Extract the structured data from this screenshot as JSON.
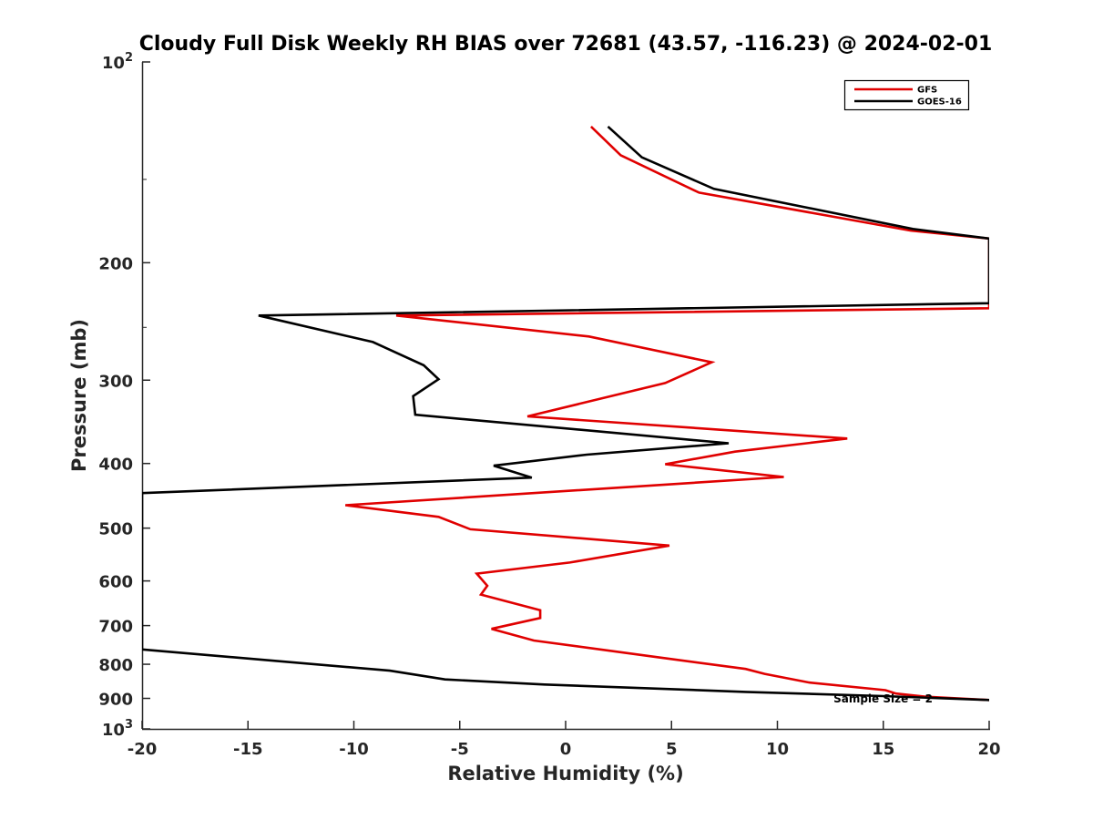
{
  "chart_data": {
    "type": "line",
    "title": "Cloudy Full Disk Weekly RH BIAS over 72681 (43.57, -116.23) @ 2024-02-01",
    "xlabel": "Relative Humidity (%)",
    "ylabel": "Pressure (mb)",
    "xlim": [
      -20,
      20
    ],
    "ylim": [
      1000,
      100
    ],
    "yscale": "log",
    "y_reversed": true,
    "x_ticks": [
      "-20",
      "-15",
      "-10",
      "-5",
      "0",
      "5",
      "10",
      "15",
      "20"
    ],
    "y_ticks": [
      {
        "value": 100,
        "base": "10",
        "exp": "2"
      },
      {
        "value": 200,
        "label": "200"
      },
      {
        "value": 300,
        "label": "300"
      },
      {
        "value": 400,
        "label": "400"
      },
      {
        "value": 500,
        "label": "500"
      },
      {
        "value": 600,
        "label": "600"
      },
      {
        "value": 700,
        "label": "700"
      },
      {
        "value": 800,
        "label": "800"
      },
      {
        "value": 900,
        "label": "900"
      },
      {
        "value": 1000,
        "base": "10",
        "exp": "3"
      }
    ],
    "grid": false,
    "legend": "top-right",
    "annotation": "Sample Size = 2",
    "series": [
      {
        "name": "GFS",
        "color": "#e00000",
        "points": [
          [
            1.2,
            125
          ],
          [
            2.6,
            138
          ],
          [
            6.3,
            157
          ],
          [
            16.3,
            179
          ],
          [
            20,
            184
          ],
          [
            20,
            234
          ],
          [
            -8.0,
            240
          ],
          [
            1.1,
            258
          ],
          [
            6.9,
            282
          ],
          [
            4.7,
            303
          ],
          [
            -1.8,
            340
          ],
          [
            13.3,
            367
          ],
          [
            8.0,
            384
          ],
          [
            4.7,
            401
          ],
          [
            10.3,
            419
          ],
          [
            -10.4,
            462
          ],
          [
            -6.0,
            481
          ],
          [
            -4.5,
            502
          ],
          [
            4.9,
            531
          ],
          [
            0.2,
            563
          ],
          [
            -4.2,
            585
          ],
          [
            -3.7,
            610
          ],
          [
            -4.0,
            629
          ],
          [
            -1.2,
            664
          ],
          [
            -1.2,
            682
          ],
          [
            -3.5,
            708
          ],
          [
            -1.5,
            737
          ],
          [
            4.5,
            782
          ],
          [
            8.5,
            813
          ],
          [
            9.4,
            827
          ],
          [
            11.5,
            852
          ],
          [
            15.1,
            875
          ],
          [
            15.6,
            885
          ],
          [
            17.0,
            895
          ],
          [
            20,
            905
          ]
        ]
      },
      {
        "name": "GOES-16",
        "color": "#000000",
        "points": [
          [
            2.0,
            125
          ],
          [
            3.6,
            139
          ],
          [
            7.0,
            155
          ],
          [
            16.4,
            178
          ],
          [
            20,
            184
          ],
          [
            20,
            230
          ],
          [
            -14.5,
            240
          ],
          [
            -9.1,
            263
          ],
          [
            -6.7,
            285
          ],
          [
            -6.0,
            299
          ],
          [
            -7.2,
            317
          ],
          [
            -7.1,
            338
          ],
          [
            7.7,
            373
          ],
          [
            1.0,
            388
          ],
          [
            -3.4,
            403
          ],
          [
            -1.6,
            420
          ],
          [
            -20,
            443
          ],
          [
            -20,
            760
          ],
          [
            -8.3,
            818
          ],
          [
            -5.7,
            843
          ],
          [
            -1.0,
            858
          ],
          [
            8.5,
            880
          ],
          [
            15.0,
            893
          ],
          [
            20,
            905
          ]
        ]
      }
    ]
  }
}
